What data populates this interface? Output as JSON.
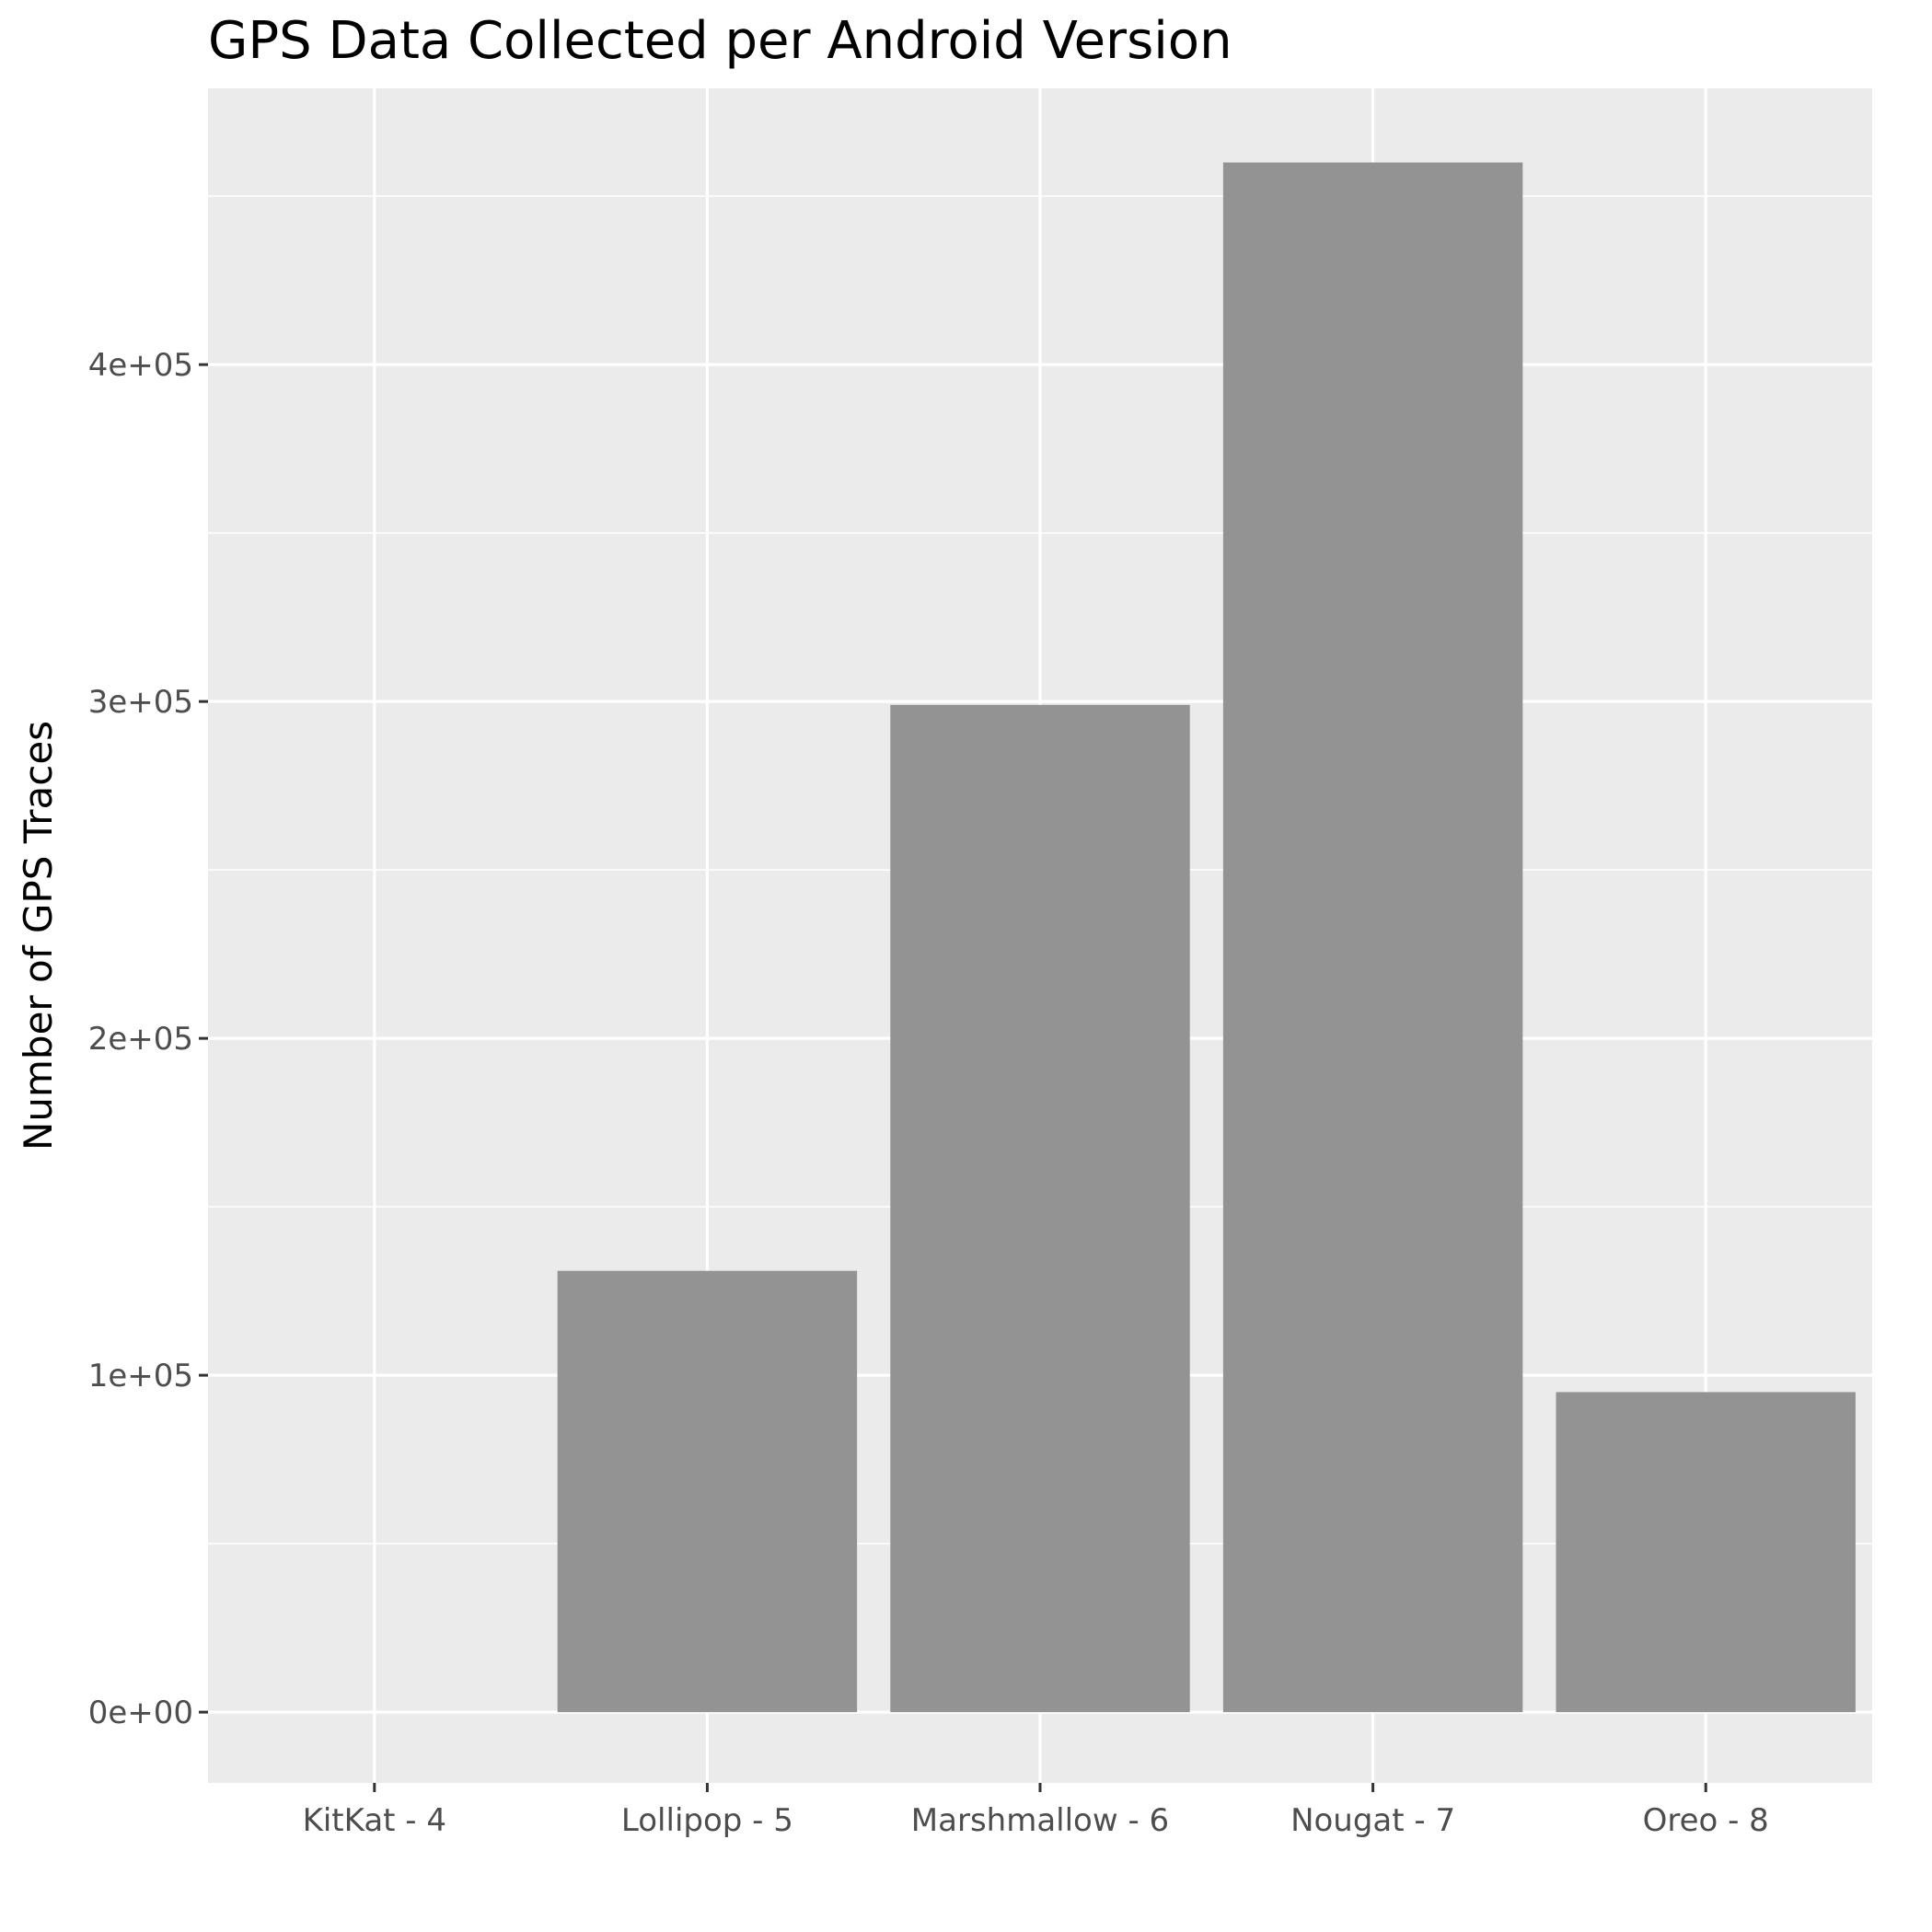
{
  "chart_data": {
    "type": "bar",
    "title": "GPS Data Collected per Android Version",
    "xlabel": "",
    "ylabel": "Number of GPS Traces",
    "categories": [
      "KitKat - 4",
      "Lollipop - 5",
      "Marshmallow - 6",
      "Nougat - 7",
      "Oreo - 8"
    ],
    "values": [
      0,
      131000,
      299000,
      460000,
      95000
    ],
    "ylim": [
      -21000,
      482000
    ],
    "y_ticks": [
      0,
      100000,
      200000,
      300000,
      400000
    ],
    "y_tick_labels": [
      "0e+00",
      "1e+05",
      "2e+05",
      "3e+05",
      "4e+05"
    ],
    "grid": true,
    "colors": {
      "panel": "#ebebeb",
      "grid": "#ffffff",
      "bar": "#939393",
      "tick_text": "#4d4d4d",
      "tick_mark": "#333333"
    }
  }
}
